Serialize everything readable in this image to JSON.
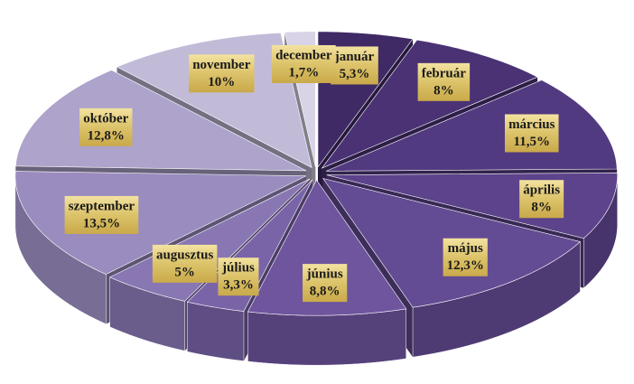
{
  "chart_data": {
    "type": "pie3d",
    "categories": [
      "január",
      "február",
      "március",
      "április",
      "május",
      "június",
      "július",
      "augusztus",
      "szeptember",
      "október",
      "november",
      "december"
    ],
    "values": [
      5.3,
      8,
      11.5,
      8,
      12.3,
      8.8,
      3.3,
      5,
      13.5,
      12.8,
      10,
      1.7
    ],
    "value_labels": [
      "5,3%",
      "8%",
      "11,5%",
      "8%",
      "12,3%",
      "8,8%",
      "3,3%",
      "5%",
      "13,5%",
      "12,8%",
      "10%",
      "1,7%"
    ],
    "colors": [
      "#3f2a66",
      "#4a3275",
      "#523a80",
      "#5c438b",
      "#644c94",
      "#6e559e",
      "#7a64a8",
      "#8877b2",
      "#9a8cbe",
      "#aea3cb",
      "#c2bbd8",
      "#d8d3e6"
    ]
  }
}
